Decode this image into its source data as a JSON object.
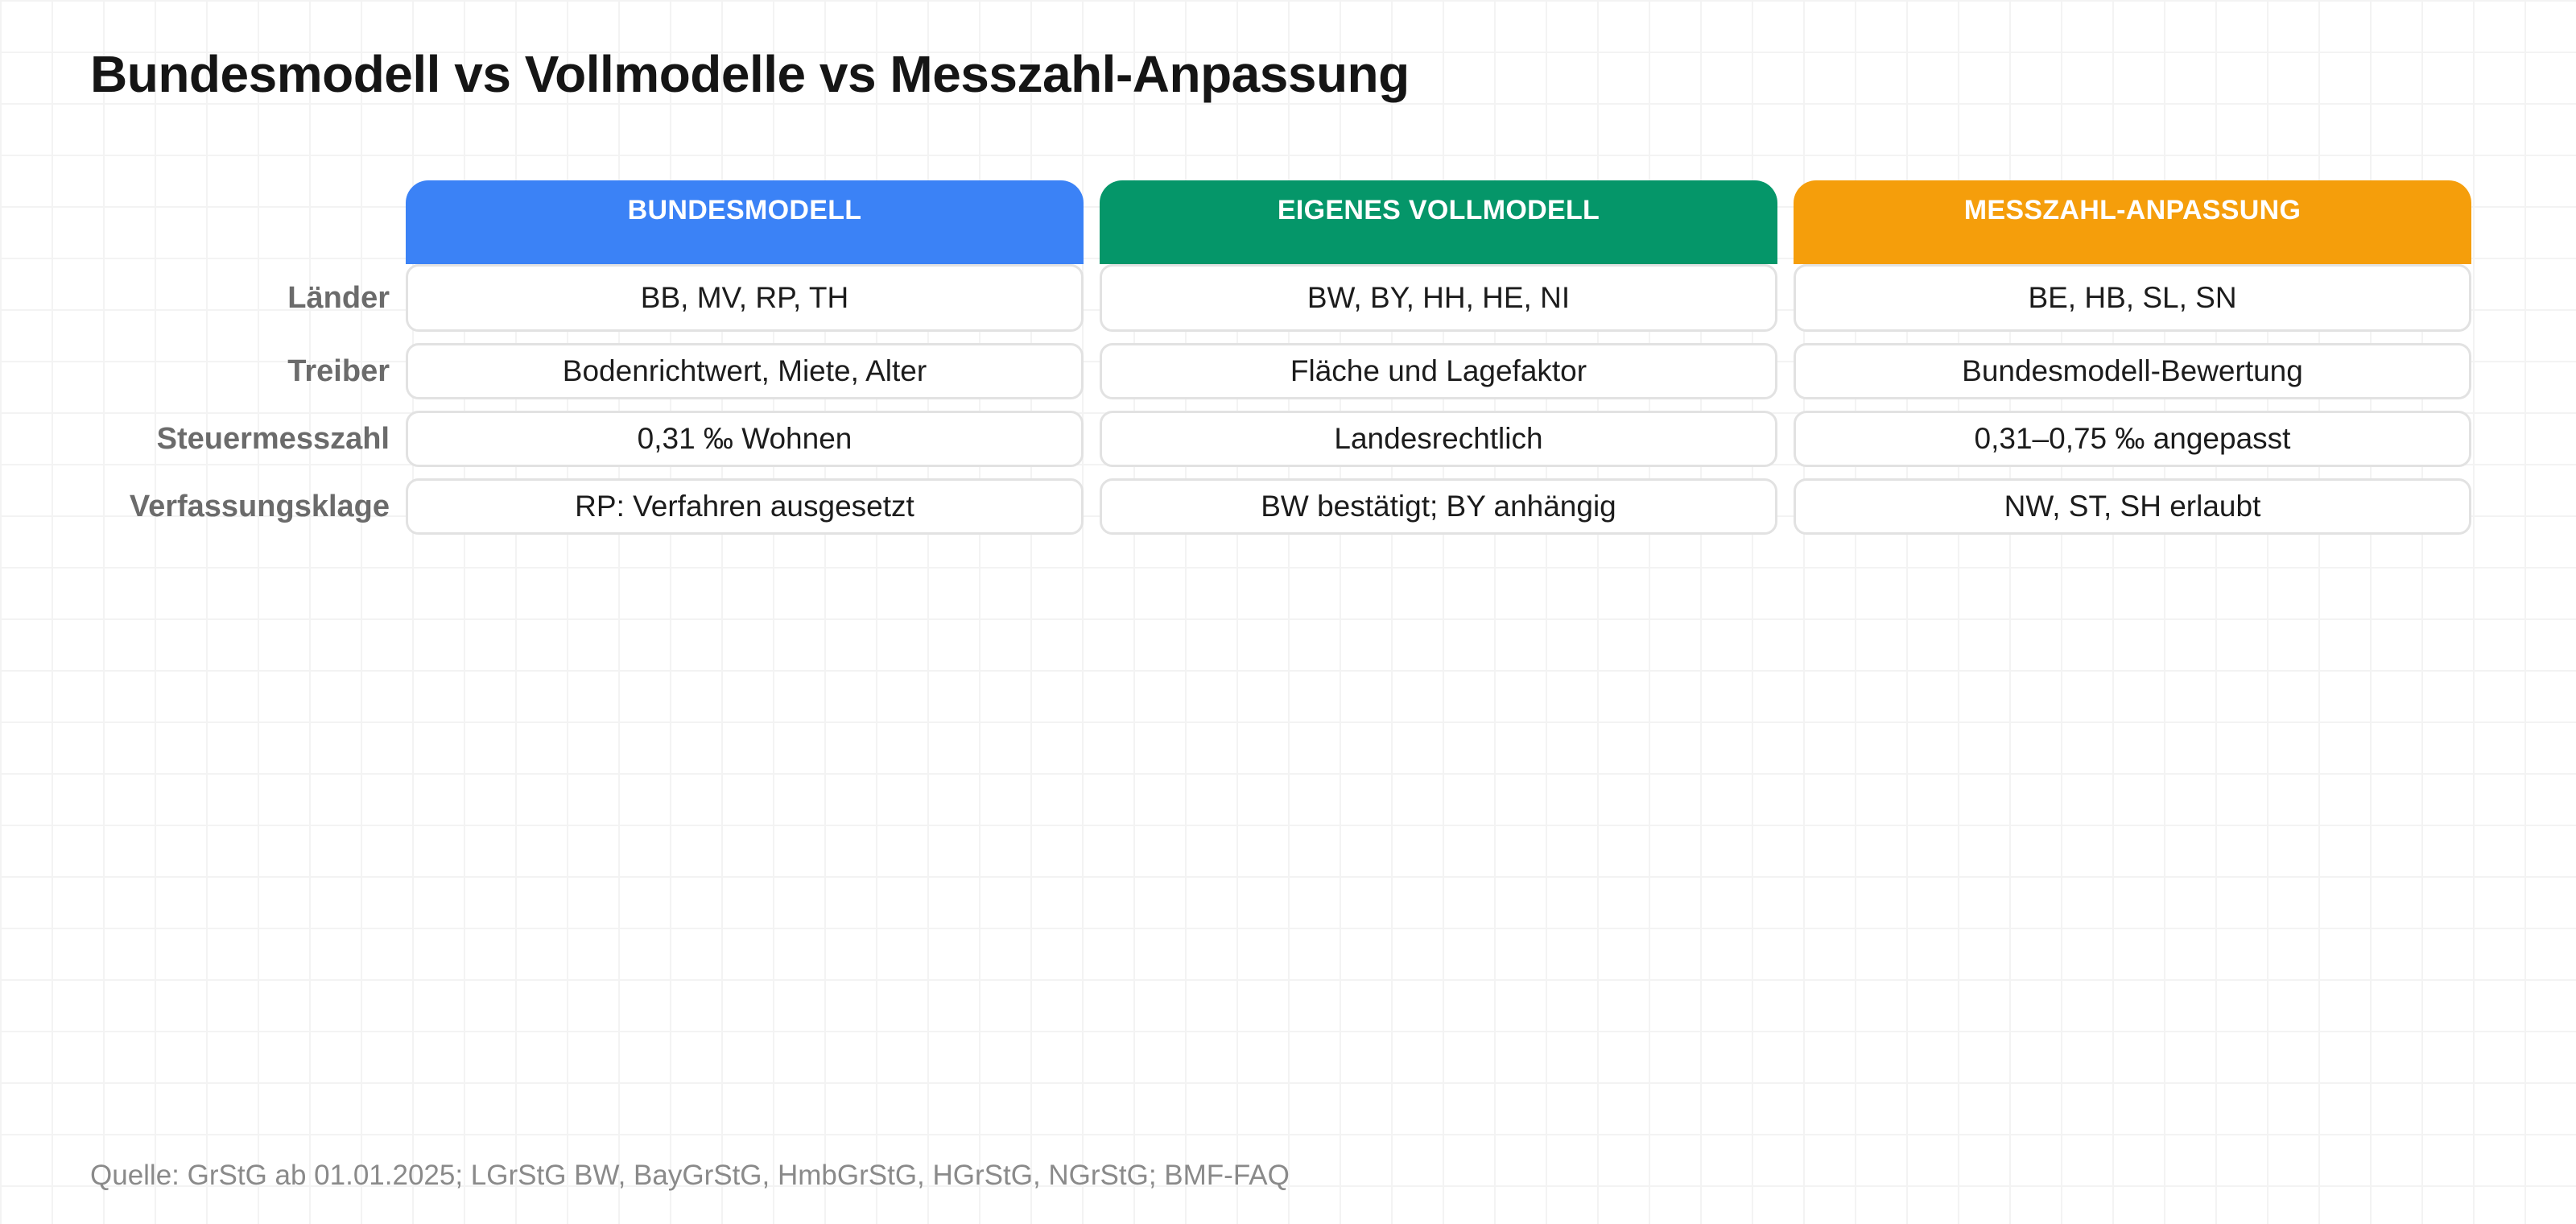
{
  "title": "Bundesmodell vs Vollmodelle vs Messzahl-Anpassung",
  "columns": [
    {
      "label": "BUNDESMODELL",
      "color": "#3b82f6"
    },
    {
      "label": "EIGENES VOLLMODELL",
      "color": "#059669"
    },
    {
      "label": "MESSZAHL-ANPASSUNG",
      "color": "#f59e0b"
    }
  ],
  "rows": [
    {
      "label": "Länder",
      "cells": [
        "BB, MV, RP, TH",
        "BW, BY, HH, HE, NI",
        "BE, HB, SL, SN"
      ]
    },
    {
      "label": "Treiber",
      "cells": [
        "Bodenrichtwert, Miete, Alter",
        "Fläche und Lagefaktor",
        "Bundesmodell-Bewertung"
      ]
    },
    {
      "label": "Steuermesszahl",
      "cells": [
        "0,31 ‰ Wohnen",
        "Landesrechtlich",
        "0,31–0,75 ‰ angepasst"
      ]
    },
    {
      "label": "Verfassungsklage",
      "cells": [
        "RP: Verfahren ausgesetzt",
        "BW bestätigt; BY anhängig",
        "NW, ST, SH erlaubt"
      ]
    }
  ],
  "source": "Quelle: GrStG ab 01.01.2025; LGrStG BW, BayGrStG, HmbGrStG, HGrStG, NGrStG; BMF-FAQ"
}
